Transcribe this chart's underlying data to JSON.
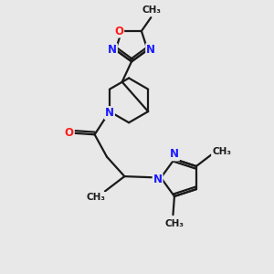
{
  "bg_color": "#e8e8e8",
  "bond_color": "#1a1a1a",
  "bond_width": 1.6,
  "atom_colors": {
    "N": "#1a1aff",
    "O": "#ff1a1a",
    "C": "#1a1a1a"
  },
  "font_size_atom": 8.5,
  "font_size_methyl": 7.5,
  "xlim": [
    0,
    10
  ],
  "ylim": [
    0,
    10
  ]
}
